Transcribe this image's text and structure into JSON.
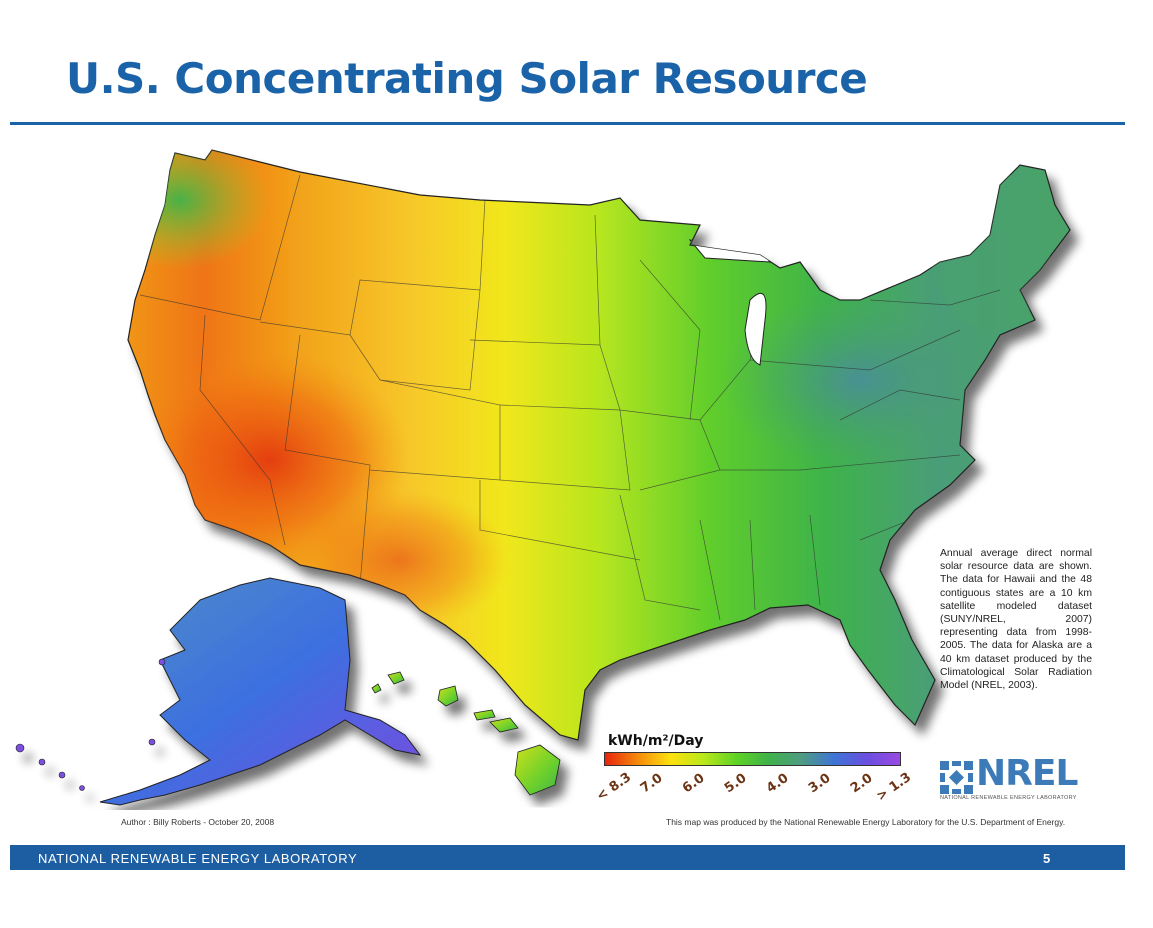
{
  "slide": {
    "title": "U.S. Concentrating Solar Resource",
    "footer_org": "NATIONAL RENEWABLE ENERGY LABORATORY",
    "page_number": "5"
  },
  "map": {
    "description_note": "Annual average direct normal solar resource data are shown. The data for Hawaii and the 48 contiguous states are a 10 km satellite modeled dataset (SUNY/NREL, 2007) representing data from 1998-2005. The data for Alaska are a 40 km dataset produced by the Climatological Solar Radiation Model (NREL, 2003).",
    "author": "Author : Billy Roberts - October 20, 2008",
    "producer": "This map was produced by the National Renewable Energy Laboratory for the U.S. Department of Energy."
  },
  "legend": {
    "title": "kWh/m²/Day",
    "ticks": [
      "< 8.3",
      "7.0",
      "6.0",
      "5.0",
      "4.0",
      "3.0",
      "2.0",
      "> 1.3"
    ],
    "gradient": [
      "#e8240c",
      "#f58a0c",
      "#fde10f",
      "#b9e81a",
      "#5fd225",
      "#3fb24a",
      "#4f9b83",
      "#3e74d6",
      "#6a4fe0",
      "#9b49e2"
    ]
  },
  "logo": {
    "wordmark": "NREL",
    "subtitle": "NATIONAL RENEWABLE ENERGY LABORATORY"
  },
  "colors": {
    "brand_blue": "#1b63a9",
    "footer_blue": "#1d5ea3",
    "tick_brown": "#6b3414",
    "logo_blue": "#3d7bb8"
  }
}
